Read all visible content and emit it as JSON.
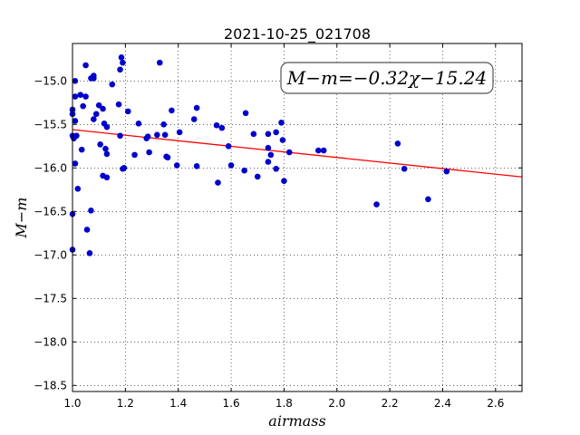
{
  "chart_data": {
    "type": "scatter",
    "title": "2021-10-25_021708",
    "xlabel": "airmass",
    "ylabel": "M−m",
    "xlim": [
      1.0,
      2.7
    ],
    "ylim": [
      -18.57,
      -14.57
    ],
    "grid": true,
    "x_ticks": [
      1.0,
      1.2,
      1.4,
      1.6,
      1.8,
      2.0,
      2.2,
      2.4,
      2.6
    ],
    "x_tick_labels": [
      "1.0",
      "1.2",
      "1.4",
      "1.6",
      "1.8",
      "2.0",
      "2.2",
      "2.4",
      "2.6"
    ],
    "y_ticks": [
      -15.0,
      -15.5,
      -16.0,
      -16.5,
      -17.0,
      -17.5,
      -18.0,
      -18.5
    ],
    "y_tick_labels": [
      "−15.0",
      "−15.5",
      "−16.0",
      "−16.5",
      "−17.0",
      "−17.5",
      "−18.0",
      "−18.5"
    ],
    "annotation": "M−m=−0.32χ−15.24",
    "annotation_position": "top-right",
    "fit_line": {
      "slope": -0.32,
      "intercept": -15.24,
      "color": "#ff0000"
    },
    "point_color": "#0000cc",
    "points": [
      [
        1.0,
        -15.33
      ],
      [
        1.0,
        -15.38
      ],
      [
        1.0,
        -15.63
      ],
      [
        1.0,
        -16.53
      ],
      [
        1.0,
        -16.94
      ],
      [
        1.005,
        -15.66
      ],
      [
        1.01,
        -15.0
      ],
      [
        1.01,
        -15.18
      ],
      [
        1.01,
        -15.46
      ],
      [
        1.01,
        -15.95
      ],
      [
        1.015,
        -15.63
      ],
      [
        1.02,
        -16.24
      ],
      [
        1.03,
        -15.16
      ],
      [
        1.035,
        -15.79
      ],
      [
        1.04,
        -15.29
      ],
      [
        1.05,
        -14.82
      ],
      [
        1.05,
        -15.18
      ],
      [
        1.055,
        -16.71
      ],
      [
        1.065,
        -16.98
      ],
      [
        1.07,
        -14.97
      ],
      [
        1.07,
        -16.49
      ],
      [
        1.08,
        -14.94
      ],
      [
        1.08,
        -14.97
      ],
      [
        1.08,
        -15.44
      ],
      [
        1.09,
        -15.38
      ],
      [
        1.1,
        -15.28
      ],
      [
        1.105,
        -15.73
      ],
      [
        1.115,
        -15.32
      ],
      [
        1.115,
        -16.09
      ],
      [
        1.12,
        -15.49
      ],
      [
        1.125,
        -15.78
      ],
      [
        1.13,
        -15.53
      ],
      [
        1.13,
        -15.84
      ],
      [
        1.13,
        -16.11
      ],
      [
        1.15,
        -15.04
      ],
      [
        1.175,
        -15.27
      ],
      [
        1.18,
        -14.87
      ],
      [
        1.18,
        -15.63
      ],
      [
        1.185,
        -14.73
      ],
      [
        1.19,
        -14.79
      ],
      [
        1.19,
        -16.01
      ],
      [
        1.195,
        -16.0
      ],
      [
        1.21,
        -15.35
      ],
      [
        1.235,
        -15.85
      ],
      [
        1.25,
        -15.49
      ],
      [
        1.28,
        -15.66
      ],
      [
        1.285,
        -15.64
      ],
      [
        1.29,
        -15.82
      ],
      [
        1.32,
        -15.62
      ],
      [
        1.33,
        -14.79
      ],
      [
        1.345,
        -15.5
      ],
      [
        1.35,
        -15.62
      ],
      [
        1.355,
        -15.87
      ],
      [
        1.36,
        -15.88
      ],
      [
        1.375,
        -15.34
      ],
      [
        1.395,
        -15.97
      ],
      [
        1.405,
        -15.59
      ],
      [
        1.46,
        -15.44
      ],
      [
        1.47,
        -15.31
      ],
      [
        1.47,
        -15.98
      ],
      [
        1.545,
        -15.51
      ],
      [
        1.55,
        -16.17
      ],
      [
        1.565,
        -15.54
      ],
      [
        1.59,
        -15.75
      ],
      [
        1.6,
        -15.97
      ],
      [
        1.65,
        -16.03
      ],
      [
        1.655,
        -15.37
      ],
      [
        1.685,
        -15.61
      ],
      [
        1.7,
        -16.1
      ],
      [
        1.74,
        -15.61
      ],
      [
        1.74,
        -15.77
      ],
      [
        1.74,
        -15.93
      ],
      [
        1.75,
        -15.85
      ],
      [
        1.77,
        -15.59
      ],
      [
        1.77,
        -16.01
      ],
      [
        1.79,
        -15.48
      ],
      [
        1.795,
        -15.68
      ],
      [
        1.8,
        -16.15
      ],
      [
        1.82,
        -15.82
      ],
      [
        1.93,
        -15.8
      ],
      [
        1.95,
        -15.8
      ],
      [
        2.15,
        -16.42
      ],
      [
        2.23,
        -15.72
      ],
      [
        2.255,
        -16.01
      ],
      [
        2.345,
        -16.36
      ],
      [
        2.415,
        -16.04
      ]
    ]
  }
}
